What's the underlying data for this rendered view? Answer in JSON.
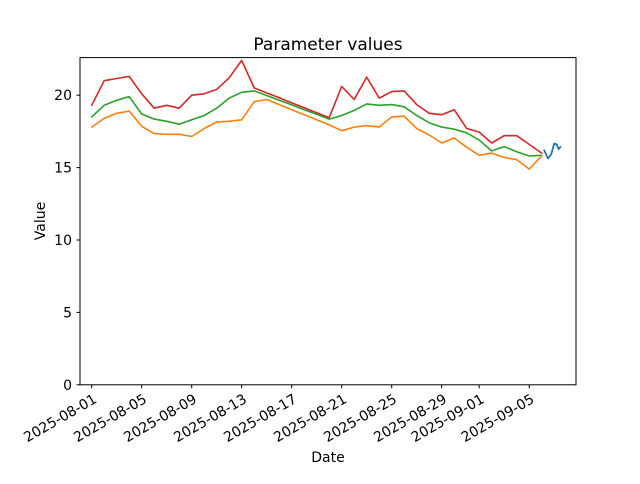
{
  "chart_data": {
    "type": "line",
    "title": "Parameter values",
    "xlabel": "Date",
    "ylabel": "Value",
    "ylim": [
      0,
      22.6
    ],
    "grid": false,
    "legend": "none",
    "x": [
      "2025-08-01",
      "2025-08-02",
      "2025-08-03",
      "2025-08-04",
      "2025-08-05",
      "2025-08-06",
      "2025-08-07",
      "2025-08-08",
      "2025-08-09",
      "2025-08-10",
      "2025-08-11",
      "2025-08-12",
      "2025-08-13",
      "2025-08-14",
      "2025-08-15",
      "2025-08-16",
      "2025-08-17",
      "2025-08-18",
      "2025-08-19",
      "2025-08-20",
      "2025-08-21",
      "2025-08-22",
      "2025-08-23",
      "2025-08-24",
      "2025-08-25",
      "2025-08-26",
      "2025-08-27",
      "2025-08-28",
      "2025-08-29",
      "2025-08-30",
      "2025-08-31",
      "2025-09-01",
      "2025-09-02",
      "2025-09-03",
      "2025-09-04",
      "2025-09-05",
      "2025-09-06"
    ],
    "series": [
      {
        "name": "red-line",
        "color": "#d62728",
        "values": [
          19.3,
          21.0,
          21.15,
          21.3,
          20.1,
          19.1,
          19.3,
          19.1,
          20.0,
          20.1,
          20.4,
          21.2,
          22.4,
          20.5,
          20.16,
          19.82,
          19.47,
          19.13,
          18.79,
          18.45,
          20.6,
          19.7,
          21.25,
          19.8,
          20.25,
          20.3,
          19.35,
          18.75,
          18.65,
          19.0,
          17.7,
          17.45,
          16.7,
          17.2,
          17.2,
          16.6,
          16.0
        ]
      },
      {
        "name": "green-line",
        "color": "#2ca02c",
        "values": [
          18.5,
          19.3,
          19.65,
          19.9,
          18.7,
          18.35,
          18.2,
          18.0,
          18.3,
          18.6,
          19.1,
          19.8,
          20.2,
          20.3,
          19.98,
          19.65,
          19.33,
          19.0,
          18.68,
          18.35,
          18.6,
          18.95,
          19.4,
          19.3,
          19.35,
          19.2,
          18.6,
          18.1,
          17.8,
          17.65,
          17.4,
          16.9,
          16.15,
          16.45,
          16.1,
          15.8,
          15.85
        ]
      },
      {
        "name": "orange-line",
        "color": "#ff7f0e",
        "values": [
          17.8,
          18.4,
          18.75,
          18.9,
          17.85,
          17.35,
          17.3,
          17.3,
          17.15,
          17.7,
          18.15,
          18.2,
          18.3,
          19.55,
          19.7,
          19.35,
          19.0,
          18.65,
          18.3,
          17.95,
          17.55,
          17.8,
          17.9,
          17.8,
          18.5,
          18.55,
          17.7,
          17.25,
          16.7,
          17.05,
          16.4,
          15.85,
          16.0,
          15.7,
          15.55,
          14.9,
          15.8
        ]
      }
    ],
    "extra_series": {
      "name": "blue-line",
      "color": "#1f77b4",
      "note_shape": "short squiggle at right end of chart",
      "points_day_value": [
        [
          36.2,
          16.2
        ],
        [
          36.5,
          15.63
        ],
        [
          36.75,
          15.9
        ],
        [
          37.0,
          16.66
        ],
        [
          37.2,
          16.6
        ],
        [
          37.35,
          16.28
        ],
        [
          37.5,
          16.43
        ]
      ]
    },
    "x_tick_labels": [
      "2025-08-01",
      "2025-08-05",
      "2025-08-09",
      "2025-08-13",
      "2025-08-17",
      "2025-08-21",
      "2025-08-25",
      "2025-08-29",
      "2025-09-01",
      "2025-09-05"
    ],
    "y_tick_labels": [
      "0",
      "5",
      "10",
      "15",
      "20"
    ],
    "y_ticks": [
      0,
      5,
      10,
      15,
      20
    ],
    "x_tick_rotation_deg": 30
  }
}
